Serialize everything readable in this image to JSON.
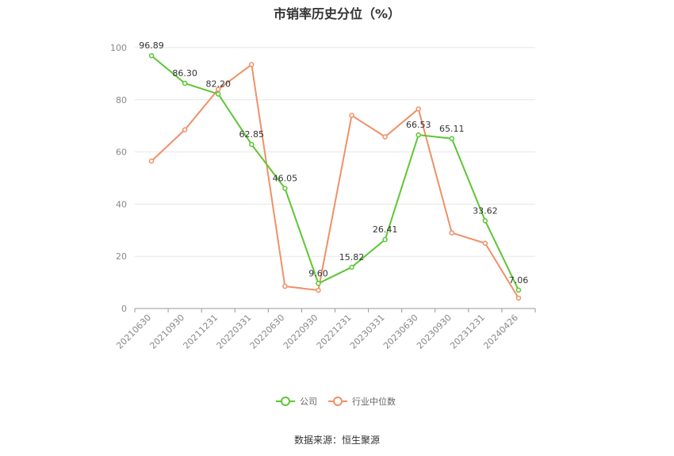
{
  "chart_data": {
    "type": "line",
    "title": "市销率历史分位（%）",
    "categories": [
      "20210630",
      "20210930",
      "20211231",
      "20220331",
      "20220630",
      "20220930",
      "20221231",
      "20230331",
      "20230630",
      "20230930",
      "20231231",
      "20240426"
    ],
    "series": [
      {
        "name": "公司",
        "color": "#5ec633",
        "values": [
          96.89,
          86.3,
          82.2,
          62.85,
          46.05,
          9.6,
          15.82,
          26.41,
          66.53,
          65.11,
          33.62,
          7.06
        ],
        "labels": [
          "96.89",
          "86.30",
          "82.20",
          "62.85",
          "46.05",
          "9.60",
          "15.82",
          "26.41",
          "66.53",
          "65.11",
          "33.62",
          "7.06"
        ]
      },
      {
        "name": "行业中位数",
        "color": "#f09067",
        "values": [
          56.5,
          68.5,
          84.0,
          93.5,
          8.5,
          7.0,
          74.0,
          65.8,
          76.5,
          29.0,
          25.0,
          4.0
        ]
      }
    ],
    "ylim": [
      0,
      100
    ],
    "yticks": [
      "0",
      "20",
      "40",
      "60",
      "80",
      "100"
    ],
    "grid": true,
    "legend_position": "bottom"
  },
  "source_text": "数据来源：恒生聚源"
}
